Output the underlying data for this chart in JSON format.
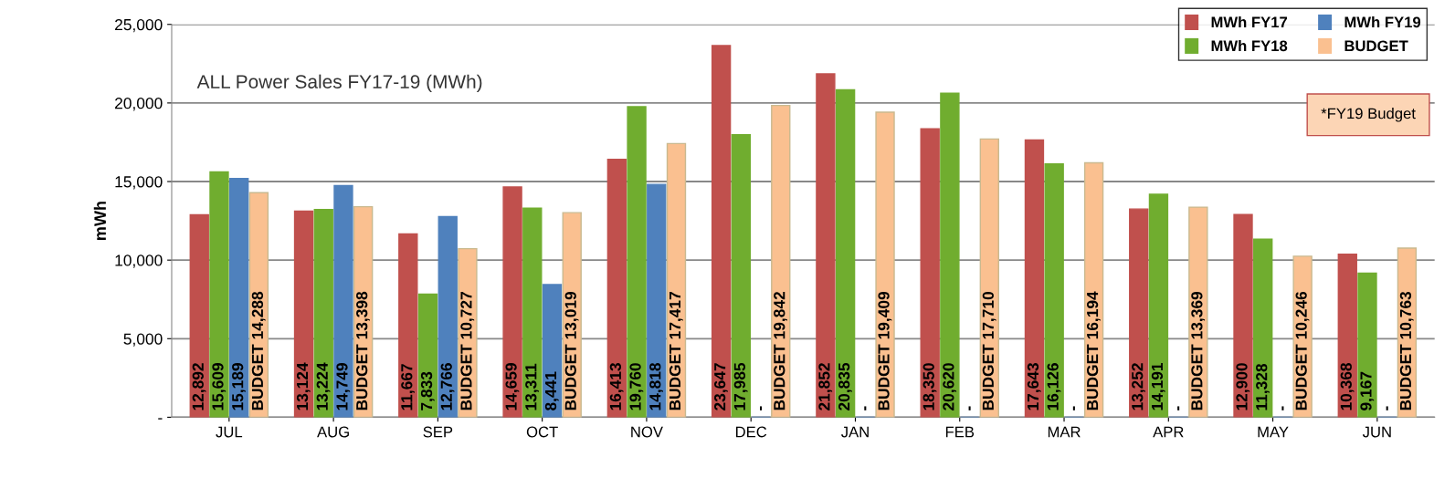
{
  "chart_data": {
    "type": "bar",
    "title": "ALL Power Sales FY17-19 (MWh)",
    "ylabel": "mWh",
    "categories": [
      "JUL",
      "AUG",
      "SEP",
      "OCT",
      "NOV",
      "DEC",
      "JAN",
      "FEB",
      "MAR",
      "APR",
      "MAY",
      "JUN"
    ],
    "series": [
      {
        "name": "MWh FY17",
        "color": "#c0504d",
        "values": [
          12892,
          13124,
          11667,
          14659,
          16413,
          23647,
          21852,
          18350,
          17643,
          13252,
          12900,
          10368
        ],
        "value_labels": [
          "12,892",
          "13,124",
          "11,667",
          "14,659",
          "16,413",
          "23,647",
          "21,852",
          "18,350",
          "17,643",
          "13,252",
          "12,900",
          "10,368"
        ]
      },
      {
        "name": "MWh FY18",
        "color": "#70ad2f",
        "values": [
          15609,
          13224,
          7833,
          13311,
          19760,
          17985,
          20835,
          20620,
          16126,
          14191,
          11328,
          9167
        ],
        "value_labels": [
          "15,609",
          "13,224",
          "7,833",
          "13,311",
          "19,760",
          "17,985",
          "20,835",
          "20,620",
          "16,126",
          "14,191",
          "11,328",
          "9,167"
        ]
      },
      {
        "name": "MWh FY19",
        "color": "#4f81bd",
        "values": [
          15189,
          14749,
          12766,
          8441,
          14818,
          null,
          null,
          null,
          null,
          null,
          null,
          null
        ],
        "value_labels": [
          "15,189",
          "14,749",
          "12,766",
          "8,441",
          "14,818",
          "-",
          "-",
          "-",
          "-",
          "-",
          "-",
          "-"
        ]
      },
      {
        "name": "BUDGET",
        "color": "#fac090",
        "values": [
          14288,
          13398,
          10727,
          13019,
          17417,
          19842,
          19409,
          17710,
          16194,
          13369,
          10246,
          10763
        ],
        "value_labels": [
          "BUDGET 14,288",
          "BUDGET 13,398",
          "BUDGET 10,727",
          "BUDGET 13,019",
          "BUDGET 17,417",
          "BUDGET 19,842",
          "BUDGET 19,409",
          "BUDGET 17,710",
          "BUDGET 16,194",
          "BUDGET 13,369",
          "BUDGET 10,246",
          "BUDGET 10,763"
        ]
      }
    ],
    "ylim": [
      0,
      25000
    ],
    "yticks": [
      {
        "value": 0,
        "label": "-"
      },
      {
        "value": 5000,
        "label": "5,000"
      },
      {
        "value": 10000,
        "label": "10,000"
      },
      {
        "value": 15000,
        "label": "15,000"
      },
      {
        "value": 20000,
        "label": "20,000"
      },
      {
        "value": 25000,
        "label": "25,000"
      }
    ],
    "grid": "y",
    "legend": "top right",
    "annotations": [
      "*FY19 Budget"
    ]
  }
}
